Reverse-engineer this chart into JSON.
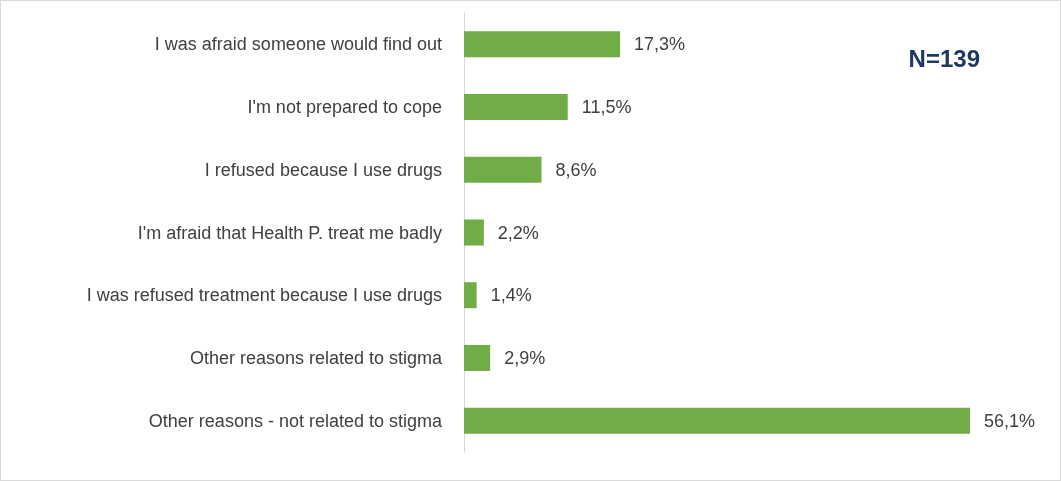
{
  "chart_data": {
    "type": "bar",
    "orientation": "horizontal",
    "categories": [
      "I was afraid someone would find out",
      "I'm not prepared to cope",
      "I refused because I use drugs",
      "I'm afraid that Health P. treat me badly",
      "I was refused treatment because I use drugs",
      "Other reasons related to stigma",
      "Other reasons - not related to stigma"
    ],
    "values": [
      17.3,
      11.5,
      8.6,
      2.2,
      1.4,
      2.9,
      56.1
    ],
    "value_labels": [
      "17,3%",
      "11,5%",
      "8,6%",
      "2,2%",
      "1,4%",
      "2,9%",
      "56,1%"
    ],
    "color": "#70ad47",
    "annotations": [
      "N=139"
    ]
  }
}
